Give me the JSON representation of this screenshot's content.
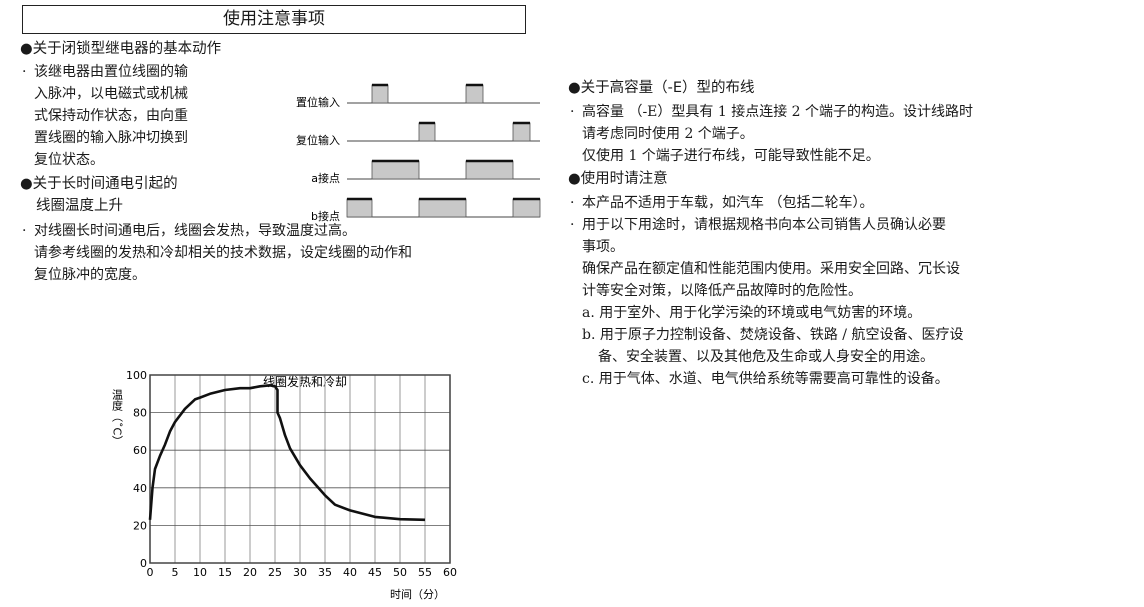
{
  "title": "使用注意事项",
  "left": {
    "sec1": {
      "heading": "●关于闭锁型继电器的基本动作",
      "lines": [
        "该继电器由置位线圈的输",
        "入脉冲，以电磁式或机械",
        "式保持动作状态，由向重",
        "置线圈的输入脉冲切换到",
        "复位状态。"
      ]
    },
    "timing": {
      "labels": [
        "置位输入",
        "复位输入",
        "a接点",
        "b接点"
      ]
    },
    "sec2": {
      "heading_lines": [
        "●关于长时间通电引起的",
        "线圈温度上升"
      ],
      "lines": [
        "对线圈长时间通电后，线圈会发热，导致温度过高。",
        "请参考线圈的发热和冷却相关的技术数据，设定线圈的动作和",
        "复位脉冲的宽度。"
      ]
    }
  },
  "right": {
    "sec1": {
      "heading": "●关于高容量（-E）型的布线",
      "lines": [
        "高容量 （-E）型具有 1 接点连接 2 个端子的构造。设计线路时",
        "请考虑同时使用 2 个端子。",
        "仅使用 1 个端子进行布线，可能导致性能不足。"
      ]
    },
    "sec2": {
      "heading": "●使用时请注意",
      "bullet1": "本产品不适用于车载，如汽车 （包括二轮车）。",
      "bullet2_lines": [
        "用于以下用途时，请根据规格书向本公司销售人员确认必要",
        "事项。"
      ],
      "para_lines": [
        "确保产品在额定值和性能范围内使用。采用安全回路、冗长设",
        "计等安全对策，以降低产品故障时的危险性。"
      ],
      "items": [
        [
          "a. 用于室外、用于化学污染的环境或电气妨害的环境。"
        ],
        [
          "b. 用于原子力控制设备、焚烧设备、铁路 / 航空设备、医疗设",
          "备、安全装置、以及其他危及生命或人身安全的用途。"
        ],
        [
          "c. 用于气体、水道、电气供给系统等需要高可靠性的设备。"
        ]
      ]
    }
  },
  "chart_data": {
    "type": "line",
    "title": "线圈发热和冷却",
    "xlabel": "时间（分）",
    "ylabel": "温度（˚C）",
    "xlim": [
      0,
      60
    ],
    "ylim": [
      0,
      100
    ],
    "xticks": [
      "0",
      "5",
      "10",
      "15",
      "20",
      "25",
      "30",
      "35",
      "40",
      "45",
      "50",
      "55",
      "60"
    ],
    "yticks": [
      "0",
      "20",
      "40",
      "60",
      "80",
      "100"
    ],
    "grid": true,
    "series": [
      {
        "x": [
          0,
          0.5,
          1,
          2,
          3,
          4,
          5,
          7,
          9,
          10,
          12,
          15,
          18,
          20,
          22,
          24,
          25,
          25.5,
          25.5,
          26,
          27,
          28,
          30,
          32,
          35,
          37,
          40,
          45,
          50,
          55
        ],
        "y": [
          23,
          40,
          50,
          57,
          63,
          70,
          75,
          82,
          87,
          88,
          90,
          92,
          93,
          93,
          94,
          94.5,
          94,
          92,
          80,
          77,
          68,
          61,
          52,
          45,
          36,
          31,
          28,
          24.5,
          23.3,
          23
        ]
      }
    ],
    "colors": {
      "line": "#111111",
      "grid": "#aaaaaa"
    }
  }
}
